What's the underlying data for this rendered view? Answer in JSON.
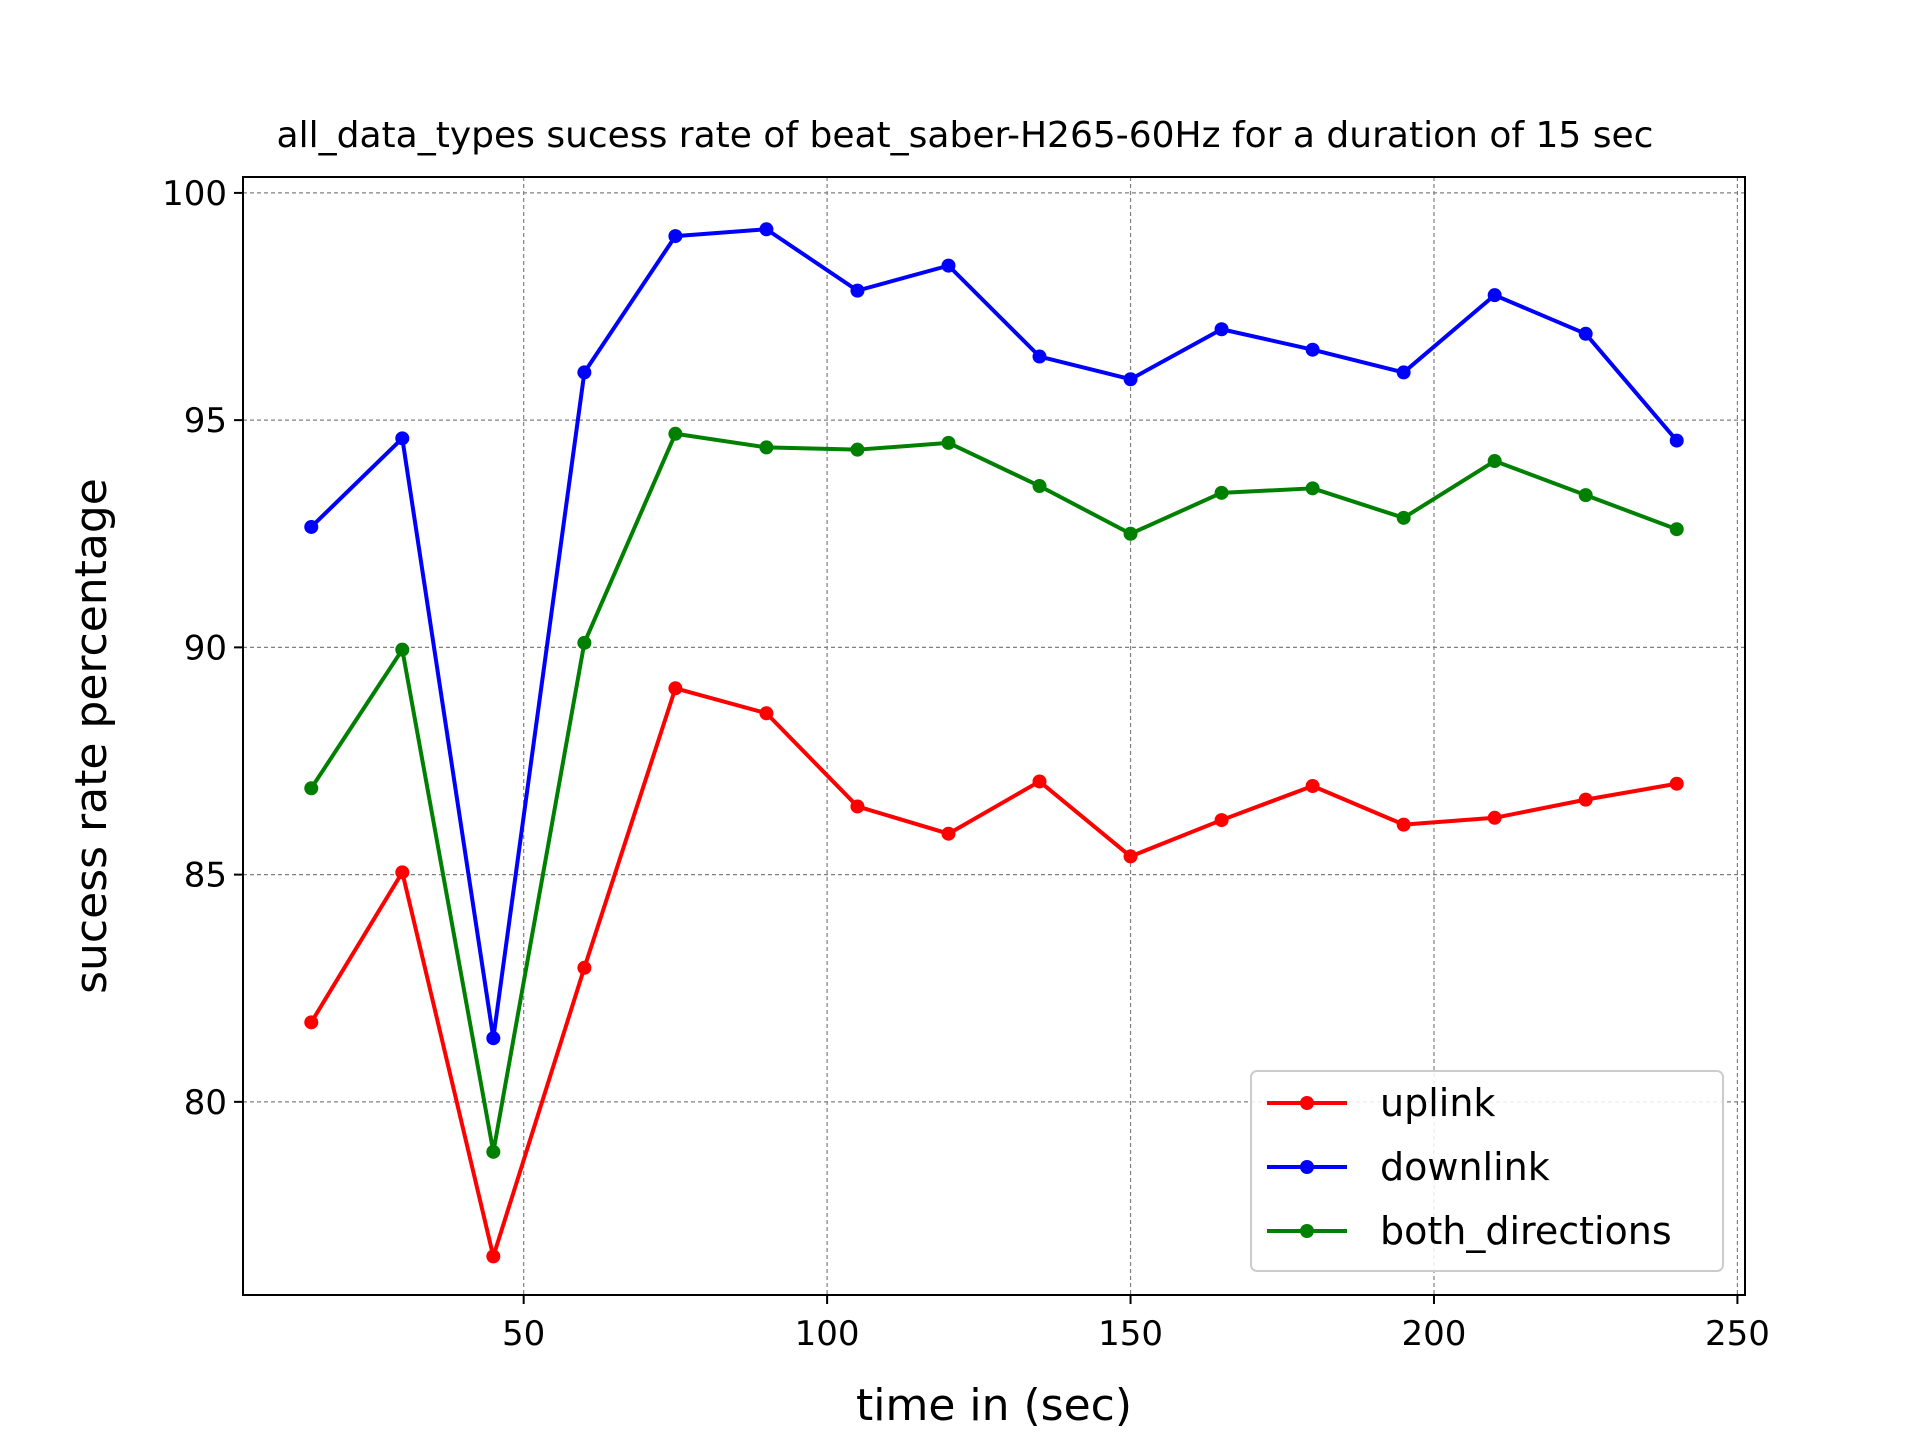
{
  "chart_data": {
    "type": "line",
    "title": "all_data_types sucess rate of beat_saber-H265-60Hz for a duration of 15 sec",
    "xlabel": "time in (sec)",
    "ylabel": "sucess rate percentage",
    "xlim": [
      3.75,
      251.25
    ],
    "ylim": [
      75.75,
      100.35
    ],
    "xticks": [
      50,
      100,
      150,
      200,
      250
    ],
    "yticks": [
      80,
      85,
      90,
      95,
      100
    ],
    "grid": true,
    "legend_position": "lower-right",
    "x": [
      15,
      30,
      45,
      60,
      75,
      90,
      105,
      120,
      135,
      150,
      165,
      180,
      195,
      210,
      225,
      240
    ],
    "series": [
      {
        "name": "uplink",
        "color": "#ff0000",
        "values": [
          81.75,
          85.05,
          76.6,
          82.95,
          89.1,
          88.55,
          86.5,
          85.9,
          87.05,
          85.4,
          86.2,
          86.95,
          86.1,
          86.25,
          86.65,
          87.0
        ]
      },
      {
        "name": "downlink",
        "color": "#0000ff",
        "values": [
          92.65,
          94.6,
          81.4,
          96.05,
          99.05,
          99.2,
          97.85,
          98.4,
          96.4,
          95.9,
          97.0,
          96.55,
          96.05,
          97.75,
          96.9,
          94.55
        ]
      },
      {
        "name": "both_directions",
        "color": "#008000",
        "values": [
          86.9,
          89.95,
          78.9,
          90.1,
          94.7,
          94.4,
          94.35,
          94.5,
          93.55,
          92.5,
          93.4,
          93.5,
          92.85,
          94.1,
          93.35,
          92.6
        ]
      }
    ]
  }
}
